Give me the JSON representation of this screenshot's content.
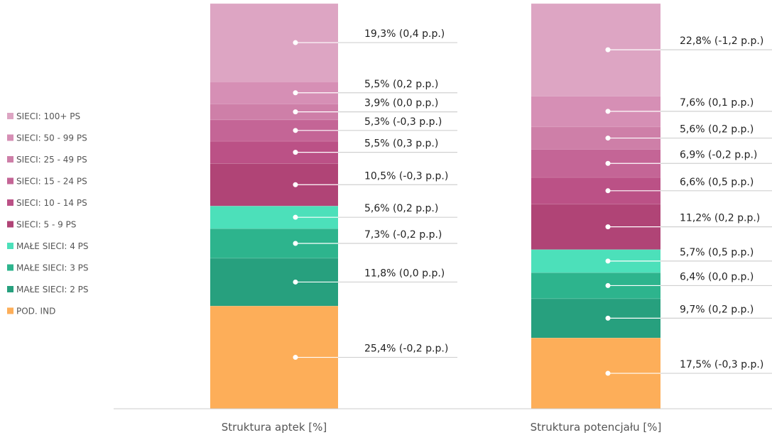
{
  "chart_data": {
    "type": "bar",
    "stacked": true,
    "percent": true,
    "categories": [
      "Struktura aptek [%]",
      "Struktura potencjału [%]"
    ],
    "legend_position": "left",
    "grid": false,
    "series": [
      {
        "name": "POD. IND",
        "color": "#FDAE59",
        "values": [
          25.4,
          17.5
        ],
        "labels": [
          "25,4% (-0,2 p.p.)",
          "17,5% (-0,3 p.p.)"
        ]
      },
      {
        "name": "MAŁE SIECI: 2 PS",
        "color": "#27A07E",
        "values": [
          11.8,
          9.7
        ],
        "labels": [
          "11,8% (0,0 p.p.)",
          "9,7% (0,2 p.p.)"
        ]
      },
      {
        "name": "MAŁE SIECI: 3 PS",
        "color": "#2DB48D",
        "values": [
          7.3,
          6.4
        ],
        "labels": [
          "7,3% (-0,2 p.p.)",
          "6,4% (0,0 p.p.)"
        ]
      },
      {
        "name": "MAŁE SIECI: 4 PS",
        "color": "#4CE0BA",
        "values": [
          5.6,
          5.7
        ],
        "labels": [
          "5,6% (0,2 p.p.)",
          "5,7% (0,5 p.p.)"
        ]
      },
      {
        "name": "SIECI: 5 - 9 PS",
        "color": "#B04476",
        "values": [
          10.5,
          11.2
        ],
        "labels": [
          "10,5% (-0,3 p.p.)",
          "11,2% (0,2 p.p.)"
        ]
      },
      {
        "name": "SIECI: 10 - 14 PS",
        "color": "#BB5186",
        "values": [
          5.5,
          6.6
        ],
        "labels": [
          "5,5% (0,3 p.p.)",
          "6,6% (0,5 p.p.)"
        ]
      },
      {
        "name": "SIECI: 15 - 24 PS",
        "color": "#C46596",
        "values": [
          5.3,
          6.9
        ],
        "labels": [
          "5,3% (-0,3 p.p.)",
          "6,9% (-0,2 p.p.)"
        ]
      },
      {
        "name": "SIECI: 25 - 49 PS",
        "color": "#CE7FA8",
        "values": [
          3.9,
          5.6
        ],
        "labels": [
          "3,9% (0,0 p.p.)",
          "5,6% (0,2 p.p.)"
        ]
      },
      {
        "name": "SIECI: 50 - 99 PS",
        "color": "#D68FB5",
        "values": [
          5.5,
          7.6
        ],
        "labels": [
          "5,5% (0,2 p.p.)",
          "7,6% (0,1 p.p.)"
        ]
      },
      {
        "name": "SIECI: 100+  PS",
        "color": "#DDA5C3",
        "values": [
          19.3,
          22.8
        ],
        "labels": [
          "19,3% (0,4 p.p.)",
          "22,8% (-1,2 p.p.)"
        ]
      }
    ]
  }
}
